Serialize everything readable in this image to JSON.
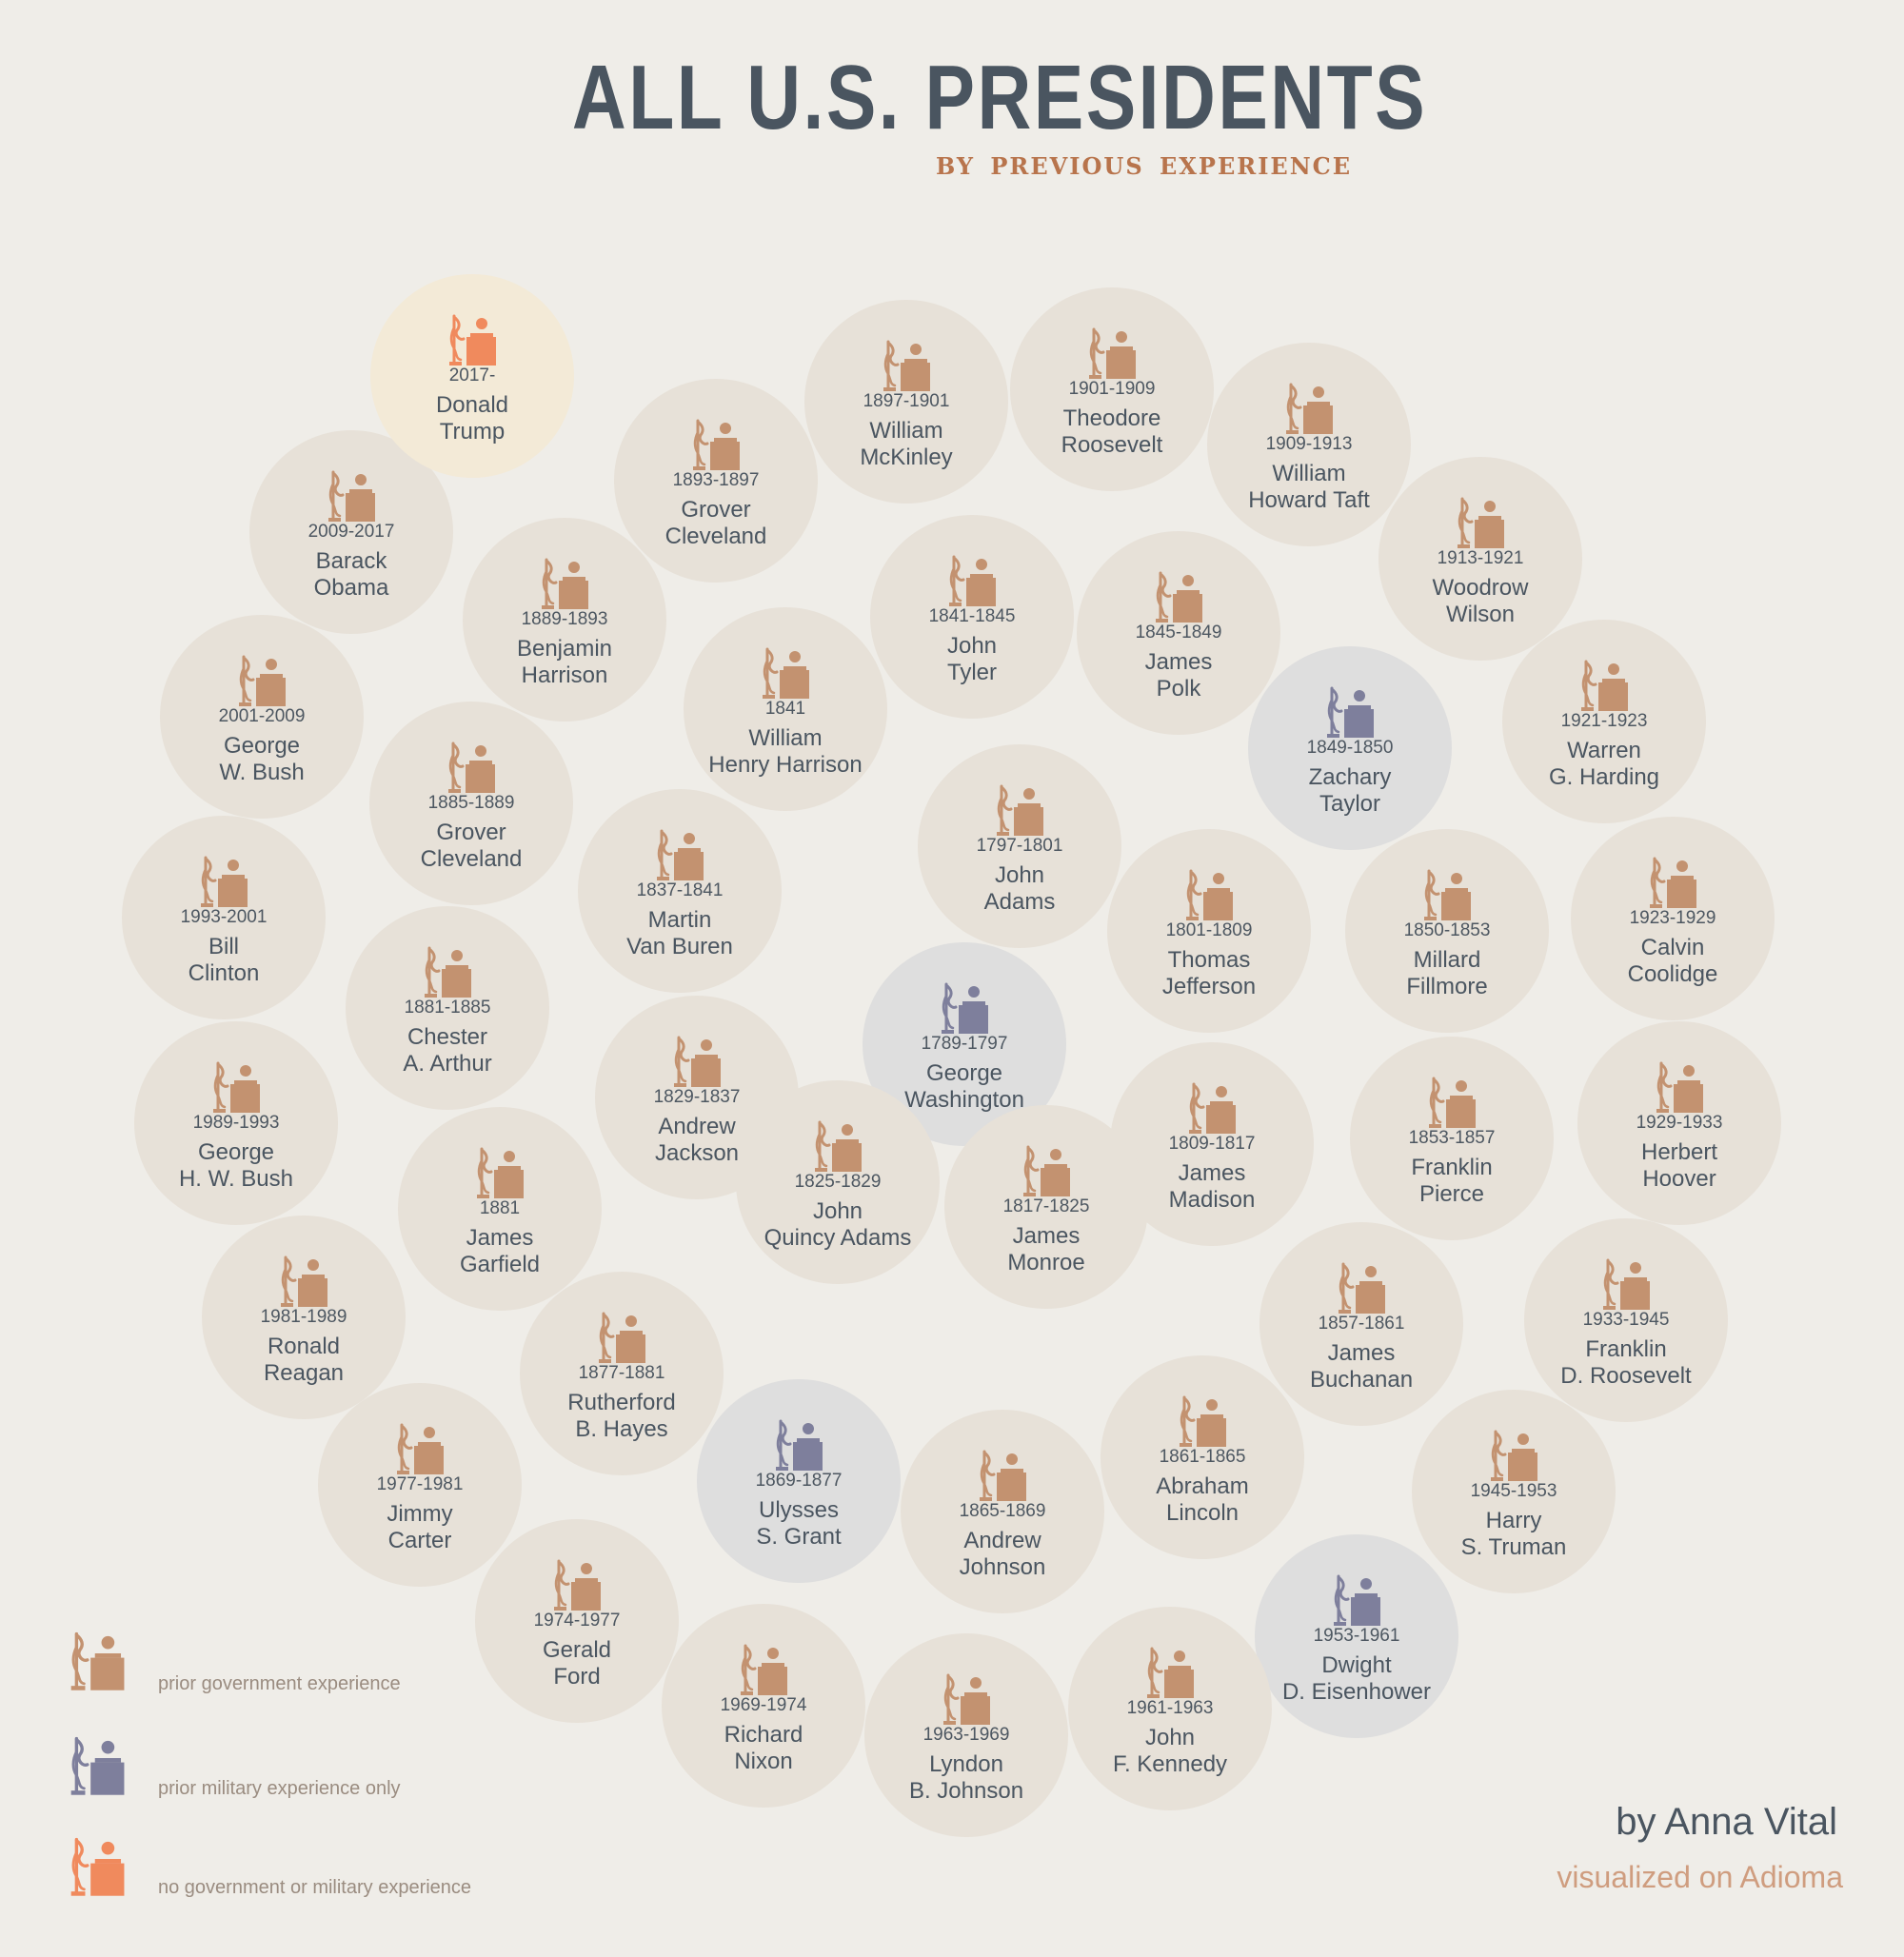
{
  "header": {
    "title": "ALL U.S. PRESIDENTS",
    "subtitle": "BY PREVIOUS EXPERIENCE"
  },
  "colors": {
    "government": "#c39270",
    "military": "#7e7f9c",
    "none": "#f08a5d"
  },
  "presidents": [
    {
      "id": "washington",
      "years": "1789-1797",
      "name": [
        "George",
        "Washington"
      ],
      "category": "military"
    },
    {
      "id": "j-adams",
      "years": "1797-1801",
      "name": [
        "John",
        "Adams"
      ],
      "category": "government"
    },
    {
      "id": "jefferson",
      "years": "1801-1809",
      "name": [
        "Thomas",
        "Jefferson"
      ],
      "category": "government"
    },
    {
      "id": "madison",
      "years": "1809-1817",
      "name": [
        "James",
        "Madison"
      ],
      "category": "government"
    },
    {
      "id": "monroe",
      "years": "1817-1825",
      "name": [
        "James",
        "Monroe"
      ],
      "category": "government"
    },
    {
      "id": "jq-adams",
      "years": "1825-1829",
      "name": [
        "John",
        "Quincy Adams"
      ],
      "category": "government"
    },
    {
      "id": "jackson",
      "years": "1829-1837",
      "name": [
        "Andrew",
        "Jackson"
      ],
      "category": "government"
    },
    {
      "id": "van-buren",
      "years": "1837-1841",
      "name": [
        "Martin",
        "Van Buren"
      ],
      "category": "government"
    },
    {
      "id": "wh-harrison",
      "years": "1841",
      "name": [
        "William",
        "Henry Harrison"
      ],
      "category": "government"
    },
    {
      "id": "tyler",
      "years": "1841-1845",
      "name": [
        "John",
        "Tyler"
      ],
      "category": "government"
    },
    {
      "id": "polk",
      "years": "1845-1849",
      "name": [
        "James",
        "Polk"
      ],
      "category": "government"
    },
    {
      "id": "taylor",
      "years": "1849-1850",
      "name": [
        "Zachary",
        "Taylor"
      ],
      "category": "military"
    },
    {
      "id": "fillmore",
      "years": "1850-1853",
      "name": [
        "Millard",
        "Fillmore"
      ],
      "category": "government"
    },
    {
      "id": "pierce",
      "years": "1853-1857",
      "name": [
        "Franklin",
        "Pierce"
      ],
      "category": "government"
    },
    {
      "id": "buchanan",
      "years": "1857-1861",
      "name": [
        "James",
        "Buchanan"
      ],
      "category": "government"
    },
    {
      "id": "lincoln",
      "years": "1861-1865",
      "name": [
        "Abraham",
        "Lincoln"
      ],
      "category": "government"
    },
    {
      "id": "a-johnson",
      "years": "1865-1869",
      "name": [
        "Andrew",
        "Johnson"
      ],
      "category": "government"
    },
    {
      "id": "grant",
      "years": "1869-1877",
      "name": [
        "Ulysses",
        "S. Grant"
      ],
      "category": "military"
    },
    {
      "id": "hayes",
      "years": "1877-1881",
      "name": [
        "Rutherford",
        "B. Hayes"
      ],
      "category": "government"
    },
    {
      "id": "garfield",
      "years": "1881",
      "name": [
        "James",
        "Garfield"
      ],
      "category": "government"
    },
    {
      "id": "arthur",
      "years": "1881-1885",
      "name": [
        "Chester",
        "A. Arthur"
      ],
      "category": "government"
    },
    {
      "id": "cleveland-1",
      "years": "1885-1889",
      "name": [
        "Grover",
        "Cleveland"
      ],
      "category": "government"
    },
    {
      "id": "b-harrison",
      "years": "1889-1893",
      "name": [
        "Benjamin",
        "Harrison"
      ],
      "category": "government"
    },
    {
      "id": "cleveland-2",
      "years": "1893-1897",
      "name": [
        "Grover",
        "Cleveland"
      ],
      "category": "government"
    },
    {
      "id": "mckinley",
      "years": "1897-1901",
      "name": [
        "William",
        "McKinley"
      ],
      "category": "government"
    },
    {
      "id": "t-roosevelt",
      "years": "1901-1909",
      "name": [
        "Theodore",
        "Roosevelt"
      ],
      "category": "government"
    },
    {
      "id": "taft",
      "years": "1909-1913",
      "name": [
        "William",
        "Howard Taft"
      ],
      "category": "government"
    },
    {
      "id": "wilson",
      "years": "1913-1921",
      "name": [
        "Woodrow",
        "Wilson"
      ],
      "category": "government"
    },
    {
      "id": "harding",
      "years": "1921-1923",
      "name": [
        "Warren",
        "G. Harding"
      ],
      "category": "government"
    },
    {
      "id": "coolidge",
      "years": "1923-1929",
      "name": [
        "Calvin",
        "Coolidge"
      ],
      "category": "government"
    },
    {
      "id": "hoover",
      "years": "1929-1933",
      "name": [
        "Herbert",
        "Hoover"
      ],
      "category": "government"
    },
    {
      "id": "fd-roosevelt",
      "years": "1933-1945",
      "name": [
        "Franklin",
        "D. Roosevelt"
      ],
      "category": "government"
    },
    {
      "id": "truman",
      "years": "1945-1953",
      "name": [
        "Harry",
        "S. Truman"
      ],
      "category": "government"
    },
    {
      "id": "eisenhower",
      "years": "1953-1961",
      "name": [
        "Dwight",
        "D. Eisenhower"
      ],
      "category": "military"
    },
    {
      "id": "kennedy",
      "years": "1961-1963",
      "name": [
        "John",
        "F. Kennedy"
      ],
      "category": "government"
    },
    {
      "id": "lb-johnson",
      "years": "1963-1969",
      "name": [
        "Lyndon",
        "B. Johnson"
      ],
      "category": "government"
    },
    {
      "id": "nixon",
      "years": "1969-1974",
      "name": [
        "Richard",
        "Nixon"
      ],
      "category": "government"
    },
    {
      "id": "ford",
      "years": "1974-1977",
      "name": [
        "Gerald",
        "Ford"
      ],
      "category": "government"
    },
    {
      "id": "carter",
      "years": "1977-1981",
      "name": [
        "Jimmy",
        "Carter"
      ],
      "category": "government"
    },
    {
      "id": "reagan",
      "years": "1981-1989",
      "name": [
        "Ronald",
        "Reagan"
      ],
      "category": "government"
    },
    {
      "id": "ghw-bush",
      "years": "1989-1993",
      "name": [
        "George",
        "H. W. Bush"
      ],
      "category": "government"
    },
    {
      "id": "clinton",
      "years": "1993-2001",
      "name": [
        "Bill",
        "Clinton"
      ],
      "category": "government"
    },
    {
      "id": "gw-bush",
      "years": "2001-2009",
      "name": [
        "George",
        "W. Bush"
      ],
      "category": "government"
    },
    {
      "id": "obama",
      "years": "2009-2017",
      "name": [
        "Barack",
        "Obama"
      ],
      "category": "government"
    },
    {
      "id": "trump",
      "years": "2017-",
      "name": [
        "Donald",
        "Trump"
      ],
      "category": "none"
    }
  ],
  "legend": {
    "government": "prior government experience",
    "military": "prior military experience only",
    "none": "no government or military experience"
  },
  "credits": {
    "author": "by Anna Vital",
    "site": "visualized on Adioma"
  }
}
